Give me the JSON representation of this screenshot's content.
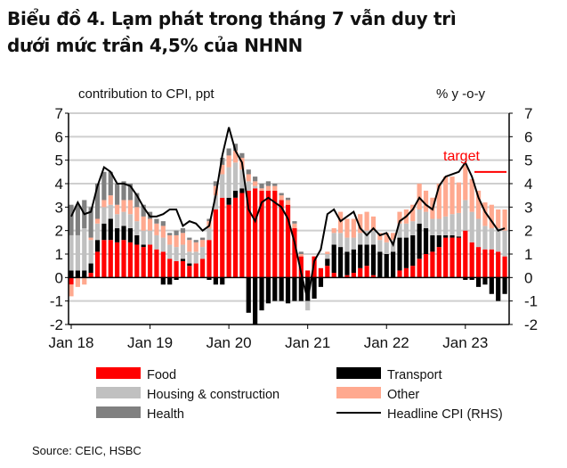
{
  "title_line1": "Biểu đồ 4. Lạm phát trong tháng 7 vẫn duy trì",
  "title_line2": "dưới mức trần 4,5% của NHNN",
  "source": "Source: CEIC, HSBC",
  "chart_data": {
    "type": "bar",
    "stacked": true,
    "ylabel_left": "contribution to CPI, ppt",
    "ylabel_right": "% y -o-y",
    "ylim": [
      -2,
      7
    ],
    "yticks": [
      -2,
      -1,
      0,
      1,
      2,
      3,
      4,
      5,
      6,
      7
    ],
    "xtick_labels": [
      "Jan 18",
      "Jan 19",
      "Jan 20",
      "Jan 21",
      "Jan 22",
      "Jan 23"
    ],
    "x_start": "2018-01",
    "x_end": "2023-07",
    "grid": true,
    "legend_placement": "bottom",
    "annotation": {
      "text": "target",
      "value": 4.5,
      "color": "#ff0000"
    },
    "series": [
      {
        "name": "Food",
        "color": "#ff0000",
        "values": [
          -0.3,
          0,
          0,
          0.2,
          1.1,
          1.6,
          1.6,
          1.5,
          1.6,
          1.5,
          1.4,
          1.3,
          1.4,
          1.2,
          1.1,
          0.8,
          0.7,
          0.7,
          0.5,
          0.6,
          0.8,
          1.6,
          2.9,
          3.4,
          3.1,
          3.4,
          3.6,
          3.7,
          3.8,
          3.7,
          3.7,
          3.7,
          3.3,
          3.1,
          2.1,
          0.9,
          0.3,
          0.9,
          0.4,
          0.5,
          0.2,
          0,
          0.1,
          0.2,
          0.4,
          0.5,
          0.1,
          0,
          0,
          0,
          0.3,
          0.4,
          0.5,
          0.8,
          1.0,
          1.1,
          1.3,
          1.7,
          1.7,
          1.7,
          2.0,
          1.5,
          1.3,
          1.2,
          1.2,
          1.1,
          0.9
        ]
      },
      {
        "name": "Transport",
        "color": "#000000",
        "values": [
          0.3,
          0.3,
          0.3,
          0.4,
          0.5,
          0.7,
          0.9,
          0.6,
          0.6,
          0.6,
          0.4,
          0.1,
          0,
          0,
          -0.3,
          -0.3,
          -0.1,
          0.1,
          0.1,
          0,
          0,
          -0.1,
          -0.3,
          -0.3,
          0.3,
          0.3,
          0.2,
          -1.5,
          -2.0,
          -1.4,
          -1.1,
          -1.0,
          -1.0,
          -1.1,
          -1.0,
          -1.0,
          -1.0,
          -0.9,
          -0.4,
          0.3,
          1.2,
          1.3,
          1.0,
          1.0,
          1.0,
          0.9,
          1.3,
          1.1,
          1.0,
          1.1,
          1.4,
          1.3,
          1.3,
          1.5,
          1.1,
          0.7,
          0.5,
          0.1,
          0.1,
          0.05,
          -0.1,
          -0.1,
          -0.4,
          -0.3,
          -0.7,
          -1.0,
          -0.7
        ]
      },
      {
        "name": "Housing & construction",
        "color": "#c0c0c0",
        "values": [
          1.5,
          1.5,
          1.8,
          1.0,
          0.7,
          0.7,
          0.6,
          0.6,
          0.6,
          0.6,
          0.6,
          0.6,
          0.6,
          0.6,
          0.6,
          0.6,
          0.6,
          0.6,
          0.5,
          0.5,
          0.5,
          0.5,
          0.6,
          1.0,
          1.3,
          1.2,
          0.8,
          0.4,
          0.1,
          0,
          0,
          0,
          0,
          0,
          0,
          0,
          -0.4,
          0,
          0,
          0.2,
          0.5,
          0.6,
          0.6,
          0.5,
          0.5,
          0.6,
          0.6,
          0.5,
          0.5,
          0.5,
          0.6,
          0.6,
          0.6,
          0.6,
          0.7,
          0.7,
          0.7,
          0.8,
          0.9,
          1.0,
          1.3,
          1.3,
          1.2,
          1.0,
          0.9,
          1.0,
          1.1
        ]
      },
      {
        "name": "Other",
        "color": "#ffa98f",
        "values": [
          -0.5,
          -0.4,
          -0.3,
          0.1,
          0.2,
          0.3,
          0.4,
          0.4,
          0.5,
          0.6,
          0.6,
          0.6,
          0.5,
          0.5,
          0.5,
          0.4,
          0.5,
          0.5,
          0.5,
          0.4,
          0.3,
          0.3,
          0.4,
          0.4,
          0.5,
          0.5,
          0.5,
          0.3,
          0.2,
          0.1,
          0.2,
          0.2,
          0.2,
          0.2,
          0.2,
          0.1,
          0,
          0,
          0,
          0.1,
          0.2,
          0.9,
          0.8,
          0.8,
          0.8,
          0.8,
          0.6,
          0.3,
          0.4,
          0.3,
          0.5,
          0.6,
          0.7,
          1.1,
          0.9,
          0.9,
          1.5,
          1.7,
          1.6,
          1.3,
          1.5,
          1.4,
          1.2,
          1.0,
          1.0,
          0.8,
          0.9
        ]
      },
      {
        "name": "Health",
        "color": "#808080",
        "values": [
          1.3,
          1.3,
          1.2,
          1.3,
          1.5,
          1.2,
          1.0,
          0.9,
          0.8,
          0.7,
          0.6,
          0.5,
          0.3,
          0.2,
          0.2,
          0.1,
          0.2,
          0.2,
          0.1,
          0.1,
          0.1,
          0.1,
          0.2,
          0.3,
          0.3,
          0.3,
          0.2,
          0.2,
          0.2,
          0.2,
          0.2,
          0.1,
          0.1,
          0.1,
          0.1,
          0.1,
          0,
          0,
          0,
          0,
          0,
          0,
          0,
          0,
          0,
          0,
          0,
          0,
          0,
          0,
          0,
          0,
          0,
          0,
          0,
          0,
          0,
          0,
          0,
          0,
          0,
          0,
          0,
          0,
          0,
          0,
          0
        ]
      },
      {
        "name": "Headline CPI (RHS)",
        "type": "line",
        "color": "#000000",
        "values": [
          2.6,
          3.2,
          2.7,
          2.8,
          3.9,
          4.7,
          4.5,
          4.0,
          4.0,
          3.9,
          3.5,
          3.0,
          2.6,
          2.6,
          2.7,
          2.9,
          2.9,
          2.2,
          2.4,
          2.3,
          2.0,
          2.2,
          3.5,
          5.2,
          6.4,
          5.4,
          4.9,
          2.9,
          2.4,
          3.2,
          3.4,
          3.2,
          3.0,
          2.5,
          1.5,
          0.2,
          -0.97,
          0.7,
          1.2,
          2.7,
          2.9,
          2.4,
          2.6,
          2.8,
          2.1,
          1.8,
          2.1,
          1.8,
          1.9,
          1.4,
          2.4,
          2.6,
          2.9,
          3.4,
          3.1,
          2.9,
          3.9,
          4.3,
          4.4,
          4.5,
          4.9,
          4.3,
          3.4,
          2.8,
          2.4,
          2.0,
          2.1
        ]
      }
    ]
  }
}
